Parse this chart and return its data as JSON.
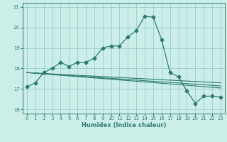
{
  "xlabel": "Humidex (Indice chaleur)",
  "background_color": "#cceee8",
  "grid_color": "#99cccc",
  "line_color": "#2d7b6e",
  "xlim": [
    -0.5,
    23.5
  ],
  "ylim": [
    15.8,
    21.2
  ],
  "yticks": [
    16,
    17,
    18,
    19,
    20,
    21
  ],
  "xticks": [
    0,
    1,
    2,
    3,
    4,
    5,
    6,
    7,
    8,
    9,
    10,
    11,
    12,
    13,
    14,
    15,
    16,
    17,
    18,
    19,
    20,
    21,
    22,
    23
  ],
  "main_series": {
    "x": [
      0,
      1,
      2,
      3,
      4,
      5,
      6,
      7,
      8,
      9,
      10,
      11,
      12,
      13,
      14,
      15,
      16,
      17,
      18,
      19,
      20,
      21,
      22,
      23
    ],
    "y": [
      17.1,
      17.3,
      17.8,
      18.0,
      18.3,
      18.1,
      18.3,
      18.3,
      18.5,
      19.0,
      19.1,
      19.1,
      19.55,
      19.85,
      20.55,
      20.5,
      19.4,
      17.8,
      17.6,
      16.9,
      16.3,
      16.65,
      16.65,
      16.6
    ]
  },
  "flat_lines": [
    {
      "x": [
        0,
        23
      ],
      "y": [
        17.8,
        17.3
      ]
    },
    {
      "x": [
        0,
        23
      ],
      "y": [
        17.8,
        17.15
      ]
    },
    {
      "x": [
        0,
        23
      ],
      "y": [
        17.8,
        17.05
      ]
    }
  ]
}
